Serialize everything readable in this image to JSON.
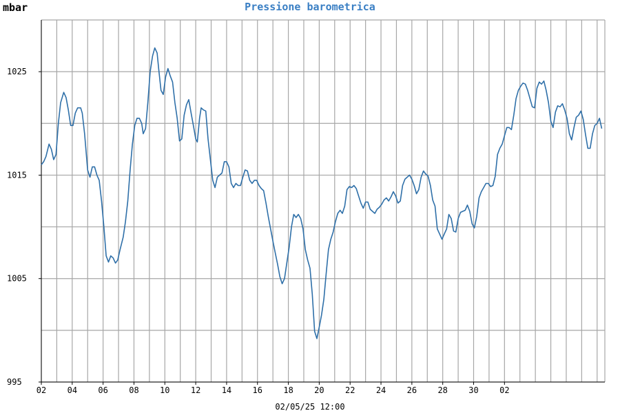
{
  "chart_data": {
    "type": "line",
    "title": "Pressione barometrica",
    "ylabel": "mbar",
    "xlabel": "02/05/25 12:00",
    "ylim": [
      995,
      1030
    ],
    "yticks": [
      995,
      1005,
      1015,
      1025
    ],
    "x_tick_labels": [
      "02",
      "04",
      "06",
      "08",
      "10",
      "12",
      "14",
      "16",
      "18",
      "20",
      "22",
      "24",
      "26",
      "28",
      "30",
      "02"
    ],
    "grid": true,
    "line_color": "#2e6fa8",
    "series": [
      {
        "values": [
          [
            0.0,
            1016.0
          ],
          [
            0.15,
            1016.3
          ],
          [
            0.3,
            1016.8
          ],
          [
            0.5,
            1018.0
          ],
          [
            0.65,
            1017.5
          ],
          [
            0.8,
            1016.5
          ],
          [
            0.95,
            1017.0
          ],
          [
            1.1,
            1020.0
          ],
          [
            1.25,
            1022.0
          ],
          [
            1.45,
            1023.0
          ],
          [
            1.6,
            1022.5
          ],
          [
            1.75,
            1021.3
          ],
          [
            1.9,
            1019.8
          ],
          [
            2.05,
            1019.8
          ],
          [
            2.2,
            1021.0
          ],
          [
            2.35,
            1021.5
          ],
          [
            2.55,
            1021.5
          ],
          [
            2.65,
            1021.0
          ],
          [
            2.8,
            1019.0
          ],
          [
            3.0,
            1015.5
          ],
          [
            3.15,
            1014.8
          ],
          [
            3.3,
            1015.8
          ],
          [
            3.45,
            1015.8
          ],
          [
            3.6,
            1015.0
          ],
          [
            3.75,
            1014.5
          ],
          [
            3.9,
            1012.5
          ],
          [
            4.05,
            1010.0
          ],
          [
            4.2,
            1007.2
          ],
          [
            4.35,
            1006.6
          ],
          [
            4.5,
            1007.2
          ],
          [
            4.65,
            1007.0
          ],
          [
            4.8,
            1006.5
          ],
          [
            4.95,
            1006.8
          ],
          [
            5.1,
            1007.8
          ],
          [
            5.3,
            1009.0
          ],
          [
            5.45,
            1010.5
          ],
          [
            5.6,
            1012.5
          ],
          [
            5.75,
            1015.5
          ],
          [
            5.9,
            1018.0
          ],
          [
            6.05,
            1019.8
          ],
          [
            6.2,
            1020.5
          ],
          [
            6.35,
            1020.5
          ],
          [
            6.5,
            1020.0
          ],
          [
            6.6,
            1019.0
          ],
          [
            6.75,
            1019.5
          ],
          [
            6.9,
            1022.0
          ],
          [
            7.05,
            1025.0
          ],
          [
            7.2,
            1026.5
          ],
          [
            7.35,
            1027.3
          ],
          [
            7.5,
            1026.8
          ],
          [
            7.6,
            1025.3
          ],
          [
            7.75,
            1023.2
          ],
          [
            7.9,
            1022.8
          ],
          [
            8.05,
            1024.5
          ],
          [
            8.2,
            1025.3
          ],
          [
            8.35,
            1024.6
          ],
          [
            8.5,
            1024.0
          ],
          [
            8.65,
            1022.0
          ],
          [
            8.8,
            1020.5
          ],
          [
            8.95,
            1018.3
          ],
          [
            9.1,
            1018.5
          ],
          [
            9.25,
            1020.8
          ],
          [
            9.4,
            1021.8
          ],
          [
            9.55,
            1022.3
          ],
          [
            9.7,
            1021.0
          ],
          [
            9.85,
            1019.8
          ],
          [
            10.0,
            1018.5
          ],
          [
            10.1,
            1018.2
          ],
          [
            10.25,
            1020.5
          ],
          [
            10.35,
            1021.5
          ],
          [
            10.5,
            1021.3
          ],
          [
            10.65,
            1021.2
          ],
          [
            10.8,
            1018.5
          ],
          [
            10.95,
            1016.5
          ],
          [
            11.1,
            1014.5
          ],
          [
            11.25,
            1013.8
          ],
          [
            11.4,
            1014.8
          ],
          [
            11.55,
            1015.0
          ],
          [
            11.7,
            1015.2
          ],
          [
            11.85,
            1016.3
          ],
          [
            12.0,
            1016.3
          ],
          [
            12.15,
            1015.8
          ],
          [
            12.3,
            1014.2
          ],
          [
            12.45,
            1013.8
          ],
          [
            12.6,
            1014.2
          ],
          [
            12.75,
            1014.0
          ],
          [
            12.9,
            1014.0
          ],
          [
            13.05,
            1014.8
          ],
          [
            13.2,
            1015.5
          ],
          [
            13.35,
            1015.4
          ],
          [
            13.5,
            1014.5
          ],
          [
            13.65,
            1014.2
          ],
          [
            13.8,
            1014.5
          ],
          [
            13.95,
            1014.5
          ],
          [
            14.1,
            1014.0
          ],
          [
            14.25,
            1013.7
          ],
          [
            14.4,
            1013.5
          ],
          [
            14.55,
            1012.3
          ],
          [
            14.7,
            1011.0
          ],
          [
            14.85,
            1009.8
          ],
          [
            15.0,
            1008.6
          ],
          [
            15.15,
            1007.5
          ],
          [
            15.3,
            1006.4
          ],
          [
            15.45,
            1005.2
          ],
          [
            15.6,
            1004.5
          ],
          [
            15.75,
            1005.0
          ],
          [
            15.9,
            1006.5
          ],
          [
            16.05,
            1008.0
          ],
          [
            16.2,
            1010.0
          ],
          [
            16.35,
            1011.2
          ],
          [
            16.5,
            1010.9
          ],
          [
            16.65,
            1011.2
          ],
          [
            16.8,
            1010.8
          ],
          [
            16.95,
            1009.8
          ],
          [
            17.1,
            1007.8
          ],
          [
            17.25,
            1006.8
          ],
          [
            17.4,
            1006.0
          ],
          [
            17.55,
            1003.5
          ],
          [
            17.7,
            999.9
          ],
          [
            17.85,
            999.2
          ],
          [
            18.0,
            1000.3
          ],
          [
            18.15,
            1001.5
          ],
          [
            18.3,
            1003.0
          ],
          [
            18.45,
            1005.5
          ],
          [
            18.6,
            1007.8
          ],
          [
            18.75,
            1008.8
          ],
          [
            18.9,
            1009.5
          ],
          [
            19.05,
            1010.5
          ],
          [
            19.2,
            1011.3
          ],
          [
            19.35,
            1011.6
          ],
          [
            19.5,
            1011.3
          ],
          [
            19.65,
            1012.0
          ],
          [
            19.8,
            1013.6
          ],
          [
            19.95,
            1013.9
          ],
          [
            20.1,
            1013.8
          ],
          [
            20.25,
            1014.0
          ],
          [
            20.4,
            1013.7
          ],
          [
            20.55,
            1013.0
          ],
          [
            20.7,
            1012.3
          ],
          [
            20.85,
            1011.8
          ],
          [
            21.0,
            1012.4
          ],
          [
            21.15,
            1012.4
          ],
          [
            21.3,
            1011.7
          ],
          [
            21.45,
            1011.5
          ],
          [
            21.6,
            1011.3
          ],
          [
            21.75,
            1011.7
          ],
          [
            21.9,
            1011.9
          ],
          [
            22.05,
            1012.2
          ],
          [
            22.2,
            1012.6
          ],
          [
            22.35,
            1012.8
          ],
          [
            22.5,
            1012.5
          ],
          [
            22.65,
            1012.9
          ],
          [
            22.8,
            1013.4
          ],
          [
            22.95,
            1013.0
          ],
          [
            23.1,
            1012.3
          ],
          [
            23.25,
            1012.5
          ],
          [
            23.4,
            1014.0
          ],
          [
            23.55,
            1014.6
          ],
          [
            23.7,
            1014.8
          ],
          [
            23.85,
            1015.0
          ],
          [
            24.0,
            1014.6
          ],
          [
            24.15,
            1014.0
          ],
          [
            24.3,
            1013.2
          ],
          [
            24.45,
            1013.6
          ],
          [
            24.6,
            1014.8
          ],
          [
            24.75,
            1015.4
          ],
          [
            24.9,
            1015.1
          ],
          [
            25.05,
            1014.9
          ],
          [
            25.2,
            1014.0
          ],
          [
            25.35,
            1012.6
          ],
          [
            25.5,
            1012.0
          ],
          [
            25.65,
            1009.8
          ],
          [
            25.8,
            1009.3
          ],
          [
            25.95,
            1008.8
          ],
          [
            26.1,
            1009.3
          ],
          [
            26.25,
            1009.8
          ],
          [
            26.4,
            1011.2
          ],
          [
            26.55,
            1010.8
          ],
          [
            26.7,
            1009.6
          ],
          [
            26.85,
            1009.5
          ],
          [
            27.0,
            1010.8
          ],
          [
            27.15,
            1011.4
          ],
          [
            27.3,
            1011.5
          ],
          [
            27.45,
            1011.6
          ],
          [
            27.6,
            1012.1
          ],
          [
            27.75,
            1011.5
          ],
          [
            27.9,
            1010.3
          ],
          [
            28.05,
            1009.9
          ],
          [
            28.2,
            1011.0
          ],
          [
            28.35,
            1012.8
          ],
          [
            28.5,
            1013.4
          ],
          [
            28.65,
            1013.8
          ],
          [
            28.8,
            1014.2
          ],
          [
            28.95,
            1014.2
          ],
          [
            29.1,
            1013.9
          ],
          [
            29.25,
            1014.0
          ],
          [
            29.4,
            1014.9
          ],
          [
            29.55,
            1017.0
          ],
          [
            29.7,
            1017.6
          ],
          [
            29.85,
            1018.0
          ],
          [
            30.0,
            1018.8
          ],
          [
            30.15,
            1019.6
          ],
          [
            30.3,
            1019.6
          ],
          [
            30.45,
            1019.4
          ],
          [
            30.6,
            1020.8
          ],
          [
            30.75,
            1022.4
          ],
          [
            30.9,
            1023.2
          ],
          [
            31.05,
            1023.6
          ],
          [
            31.2,
            1023.9
          ],
          [
            31.35,
            1023.8
          ],
          [
            31.5,
            1023.2
          ],
          [
            31.65,
            1022.4
          ],
          [
            31.8,
            1021.6
          ],
          [
            31.95,
            1021.5
          ],
          [
            32.1,
            1023.4
          ],
          [
            32.25,
            1024.0
          ],
          [
            32.4,
            1023.8
          ],
          [
            32.55,
            1024.1
          ],
          [
            32.7,
            1023.2
          ],
          [
            32.85,
            1022.0
          ],
          [
            33.0,
            1020.2
          ],
          [
            33.15,
            1019.6
          ],
          [
            33.3,
            1021.1
          ],
          [
            33.45,
            1021.7
          ],
          [
            33.6,
            1021.6
          ],
          [
            33.75,
            1021.9
          ],
          [
            33.9,
            1021.3
          ],
          [
            34.05,
            1020.5
          ],
          [
            34.2,
            1019.0
          ],
          [
            34.35,
            1018.4
          ],
          [
            34.5,
            1019.6
          ],
          [
            34.65,
            1020.6
          ],
          [
            34.8,
            1020.8
          ],
          [
            34.95,
            1021.2
          ],
          [
            35.1,
            1020.4
          ],
          [
            35.25,
            1018.9
          ],
          [
            35.4,
            1017.6
          ],
          [
            35.55,
            1017.6
          ],
          [
            35.7,
            1019.0
          ],
          [
            35.85,
            1019.8
          ],
          [
            36.0,
            1020.0
          ],
          [
            36.15,
            1020.5
          ],
          [
            36.3,
            1019.5
          ]
        ]
      }
    ]
  }
}
